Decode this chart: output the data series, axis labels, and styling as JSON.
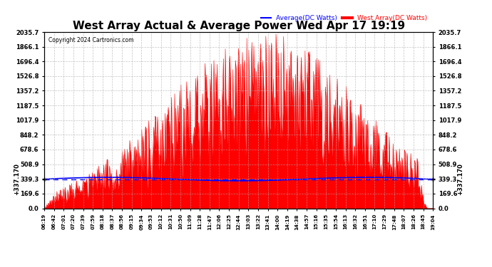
{
  "title": "West Array Actual & Average Power Wed Apr 17 19:19",
  "copyright": "Copyright 2024 Cartronics.com",
  "legend_avg": "Average(DC Watts)",
  "legend_west": "West Array(DC Watts)",
  "ymin": 0.0,
  "ymax": 2035.7,
  "yticks": [
    0.0,
    169.6,
    339.3,
    508.9,
    678.6,
    848.2,
    1017.9,
    1187.5,
    1357.2,
    1526.8,
    1696.4,
    1866.1,
    2035.7
  ],
  "hline_value": 337.17,
  "hline_label": "+337.170",
  "bg_color": "#ffffff",
  "fill_color": "#ff0000",
  "avg_line_color": "#0000ff",
  "west_line_color": "#ff0000",
  "grid_color": "#aaaaaa",
  "title_fontsize": 11,
  "xtick_labels": [
    "06:19",
    "06:42",
    "07:01",
    "07:20",
    "07:39",
    "07:59",
    "08:18",
    "08:37",
    "08:56",
    "09:15",
    "09:34",
    "09:53",
    "10:12",
    "10:31",
    "10:50",
    "11:09",
    "11:28",
    "11:47",
    "12:06",
    "12:25",
    "12:44",
    "13:03",
    "13:22",
    "13:41",
    "14:00",
    "14:19",
    "14:38",
    "14:57",
    "15:16",
    "15:35",
    "15:54",
    "16:13",
    "16:32",
    "16:51",
    "17:10",
    "17:29",
    "17:48",
    "18:07",
    "18:26",
    "18:45",
    "19:04"
  ]
}
